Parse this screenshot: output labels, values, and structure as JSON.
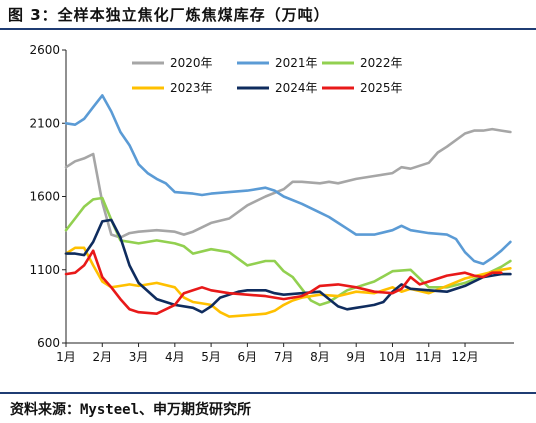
{
  "title": "图 3：全样本独立焦化厂炼焦煤库存（万吨）",
  "source": "资料来源：Mysteel、申万期货研究所",
  "chart_data": {
    "type": "line",
    "title": "图 3：全样本独立焦化厂炼焦煤库存（万吨）",
    "unit": "万吨",
    "categories": [
      "1月",
      "2月",
      "3月",
      "4月",
      "5月",
      "6月",
      "7月",
      "8月",
      "9月",
      "10月",
      "11月",
      "12月"
    ],
    "x_range": [
      1,
      13.35
    ],
    "ylim": [
      600,
      2600
    ],
    "yticks": [
      600,
      1100,
      1600,
      2100,
      2600
    ],
    "grid": false,
    "legend": "top",
    "series": [
      {
        "name": "2020年",
        "color": "#a6a6a6",
        "points": [
          [
            1.0,
            1800
          ],
          [
            1.25,
            1840
          ],
          [
            1.5,
            1860
          ],
          [
            1.75,
            1890
          ],
          [
            2.0,
            1560
          ],
          [
            2.25,
            1340
          ],
          [
            2.5,
            1320
          ],
          [
            2.75,
            1350
          ],
          [
            3.0,
            1360
          ],
          [
            3.5,
            1370
          ],
          [
            4.0,
            1360
          ],
          [
            4.25,
            1340
          ],
          [
            4.5,
            1360
          ],
          [
            5.0,
            1420
          ],
          [
            5.5,
            1450
          ],
          [
            6.0,
            1540
          ],
          [
            6.5,
            1600
          ],
          [
            7.0,
            1650
          ],
          [
            7.25,
            1700
          ],
          [
            7.5,
            1700
          ],
          [
            8.0,
            1690
          ],
          [
            8.25,
            1700
          ],
          [
            8.5,
            1690
          ],
          [
            9.0,
            1720
          ],
          [
            9.5,
            1740
          ],
          [
            10.0,
            1760
          ],
          [
            10.25,
            1800
          ],
          [
            10.5,
            1790
          ],
          [
            11.0,
            1830
          ],
          [
            11.25,
            1900
          ],
          [
            11.5,
            1940
          ],
          [
            12.0,
            2030
          ],
          [
            12.25,
            2050
          ],
          [
            12.5,
            2050
          ],
          [
            12.75,
            2060
          ],
          [
            13.0,
            2050
          ],
          [
            13.25,
            2040
          ]
        ]
      },
      {
        "name": "2021年",
        "color": "#5b9bd5",
        "points": [
          [
            1.0,
            2100
          ],
          [
            1.25,
            2090
          ],
          [
            1.5,
            2130
          ],
          [
            1.75,
            2210
          ],
          [
            2.0,
            2290
          ],
          [
            2.25,
            2180
          ],
          [
            2.5,
            2040
          ],
          [
            2.75,
            1950
          ],
          [
            3.0,
            1820
          ],
          [
            3.25,
            1760
          ],
          [
            3.5,
            1720
          ],
          [
            3.75,
            1690
          ],
          [
            4.0,
            1630
          ],
          [
            4.5,
            1620
          ],
          [
            4.75,
            1610
          ],
          [
            5.0,
            1620
          ],
          [
            5.5,
            1630
          ],
          [
            6.0,
            1640
          ],
          [
            6.5,
            1660
          ],
          [
            6.75,
            1640
          ],
          [
            7.0,
            1600
          ],
          [
            7.5,
            1550
          ],
          [
            8.0,
            1490
          ],
          [
            8.25,
            1460
          ],
          [
            8.5,
            1420
          ],
          [
            8.75,
            1380
          ],
          [
            9.0,
            1340
          ],
          [
            9.5,
            1340
          ],
          [
            10.0,
            1370
          ],
          [
            10.25,
            1400
          ],
          [
            10.5,
            1370
          ],
          [
            11.0,
            1350
          ],
          [
            11.5,
            1340
          ],
          [
            11.75,
            1310
          ],
          [
            12.0,
            1220
          ],
          [
            12.25,
            1160
          ],
          [
            12.5,
            1140
          ],
          [
            12.75,
            1180
          ],
          [
            13.0,
            1230
          ],
          [
            13.25,
            1290
          ]
        ]
      },
      {
        "name": "2022年",
        "color": "#92d050",
        "points": [
          [
            1.0,
            1370
          ],
          [
            1.25,
            1450
          ],
          [
            1.5,
            1530
          ],
          [
            1.75,
            1580
          ],
          [
            2.0,
            1590
          ],
          [
            2.25,
            1440
          ],
          [
            2.5,
            1300
          ],
          [
            3.0,
            1280
          ],
          [
            3.5,
            1300
          ],
          [
            4.0,
            1280
          ],
          [
            4.25,
            1260
          ],
          [
            4.5,
            1210
          ],
          [
            5.0,
            1240
          ],
          [
            5.5,
            1220
          ],
          [
            6.0,
            1130
          ],
          [
            6.5,
            1160
          ],
          [
            6.75,
            1160
          ],
          [
            7.0,
            1090
          ],
          [
            7.25,
            1050
          ],
          [
            7.5,
            970
          ],
          [
            7.75,
            890
          ],
          [
            8.0,
            860
          ],
          [
            8.25,
            880
          ],
          [
            8.5,
            920
          ],
          [
            8.75,
            960
          ],
          [
            9.0,
            980
          ],
          [
            9.5,
            1020
          ],
          [
            10.0,
            1090
          ],
          [
            10.5,
            1100
          ],
          [
            11.0,
            980
          ],
          [
            11.5,
            980
          ],
          [
            12.0,
            1010
          ],
          [
            12.5,
            1060
          ],
          [
            13.0,
            1120
          ],
          [
            13.25,
            1160
          ]
        ]
      },
      {
        "name": "2023年",
        "color": "#ffc000",
        "points": [
          [
            1.0,
            1210
          ],
          [
            1.25,
            1250
          ],
          [
            1.5,
            1250
          ],
          [
            1.75,
            1130
          ],
          [
            2.0,
            1020
          ],
          [
            2.25,
            980
          ],
          [
            2.5,
            990
          ],
          [
            2.75,
            1000
          ],
          [
            3.0,
            990
          ],
          [
            3.5,
            1010
          ],
          [
            4.0,
            980
          ],
          [
            4.25,
            910
          ],
          [
            4.5,
            880
          ],
          [
            4.75,
            870
          ],
          [
            5.0,
            860
          ],
          [
            5.25,
            810
          ],
          [
            5.5,
            780
          ],
          [
            6.0,
            790
          ],
          [
            6.5,
            800
          ],
          [
            6.75,
            820
          ],
          [
            7.0,
            860
          ],
          [
            7.25,
            890
          ],
          [
            7.5,
            910
          ],
          [
            8.0,
            930
          ],
          [
            8.5,
            920
          ],
          [
            9.0,
            950
          ],
          [
            9.5,
            940
          ],
          [
            10.0,
            980
          ],
          [
            10.25,
            950
          ],
          [
            10.5,
            970
          ],
          [
            11.0,
            940
          ],
          [
            11.5,
            990
          ],
          [
            12.0,
            1040
          ],
          [
            12.5,
            1070
          ],
          [
            13.0,
            1100
          ],
          [
            13.25,
            1110
          ]
        ]
      },
      {
        "name": "2024年",
        "color": "#0f2c5e",
        "points": [
          [
            1.0,
            1210
          ],
          [
            1.25,
            1210
          ],
          [
            1.5,
            1200
          ],
          [
            1.75,
            1290
          ],
          [
            2.0,
            1430
          ],
          [
            2.25,
            1440
          ],
          [
            2.5,
            1320
          ],
          [
            2.75,
            1130
          ],
          [
            3.0,
            1010
          ],
          [
            3.5,
            900
          ],
          [
            4.0,
            860
          ],
          [
            4.5,
            840
          ],
          [
            4.75,
            810
          ],
          [
            5.0,
            850
          ],
          [
            5.25,
            910
          ],
          [
            5.5,
            930
          ],
          [
            5.75,
            950
          ],
          [
            6.0,
            960
          ],
          [
            6.5,
            960
          ],
          [
            6.75,
            940
          ],
          [
            7.0,
            930
          ],
          [
            7.5,
            940
          ],
          [
            8.0,
            950
          ],
          [
            8.25,
            900
          ],
          [
            8.5,
            850
          ],
          [
            8.75,
            830
          ],
          [
            9.0,
            840
          ],
          [
            9.25,
            850
          ],
          [
            9.5,
            860
          ],
          [
            9.75,
            880
          ],
          [
            10.0,
            950
          ],
          [
            10.25,
            1000
          ],
          [
            10.5,
            970
          ],
          [
            11.0,
            960
          ],
          [
            11.5,
            950
          ],
          [
            12.0,
            990
          ],
          [
            12.25,
            1020
          ],
          [
            12.5,
            1050
          ],
          [
            12.75,
            1060
          ],
          [
            13.0,
            1070
          ],
          [
            13.25,
            1070
          ]
        ]
      },
      {
        "name": "2025年",
        "color": "#e81919",
        "points": [
          [
            1.0,
            1070
          ],
          [
            1.25,
            1080
          ],
          [
            1.5,
            1130
          ],
          [
            1.75,
            1230
          ],
          [
            2.0,
            1050
          ],
          [
            2.25,
            980
          ],
          [
            2.5,
            900
          ],
          [
            2.75,
            830
          ],
          [
            3.0,
            810
          ],
          [
            3.5,
            800
          ],
          [
            4.0,
            860
          ],
          [
            4.25,
            940
          ],
          [
            4.5,
            960
          ],
          [
            4.75,
            980
          ],
          [
            5.0,
            960
          ],
          [
            5.5,
            940
          ],
          [
            6.0,
            930
          ],
          [
            6.5,
            920
          ],
          [
            7.0,
            900
          ],
          [
            7.5,
            920
          ],
          [
            7.75,
            950
          ],
          [
            8.0,
            990
          ],
          [
            8.5,
            1000
          ],
          [
            9.0,
            980
          ],
          [
            9.5,
            950
          ],
          [
            10.0,
            940
          ],
          [
            10.25,
            970
          ],
          [
            10.5,
            1050
          ],
          [
            10.75,
            1000
          ],
          [
            11.0,
            1020
          ],
          [
            11.5,
            1060
          ],
          [
            12.0,
            1080
          ],
          [
            12.25,
            1060
          ],
          [
            12.5,
            1050
          ],
          [
            12.75,
            1080
          ],
          [
            13.0,
            1080
          ]
        ]
      }
    ]
  }
}
